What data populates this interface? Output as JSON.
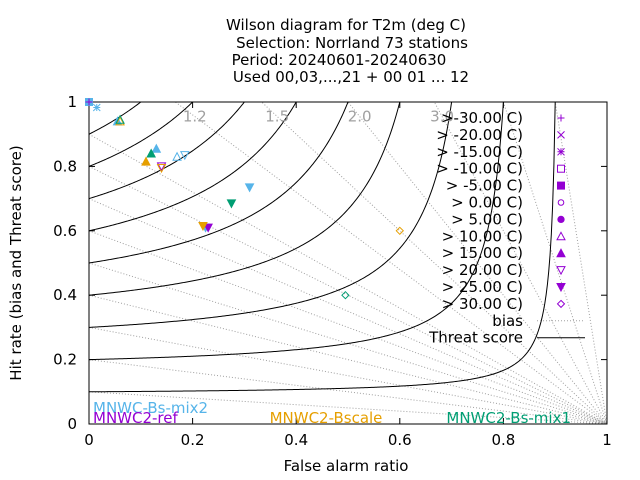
{
  "title_lines": [
    "Wilson diagram  for T2m (deg C)",
    "Selection: Norrland     73 stations",
    "Period: 20240601-20240630",
    "Used 00,03,...,21 + 00 01 ... 12"
  ],
  "chart_data": {
    "type": "scatter",
    "xlabel": "False alarm ratio",
    "ylabel": "Hit rate (bias and Threat score)",
    "xlim": [
      0,
      1
    ],
    "ylim": [
      0,
      1
    ],
    "x_ticks": [
      0,
      0.2,
      0.4,
      0.6,
      0.8,
      1
    ],
    "x_tick_labels": [
      "0",
      "0.2",
      "0.4",
      "0.6",
      "0.8",
      "1"
    ],
    "y_ticks": [
      0,
      0.2,
      0.4,
      0.6,
      0.8,
      1
    ],
    "y_tick_labels": [
      "0",
      "0.2",
      "0.4",
      "0.6",
      "0.8",
      "1"
    ],
    "bias_lines": [
      0.1,
      0.2,
      0.3,
      0.4,
      0.5,
      0.6,
      0.7,
      0.8,
      0.9,
      1.2,
      1.5,
      2.0,
      3.0,
      5.0,
      10.0
    ],
    "bias_labels": [
      {
        "value": 1.2,
        "text": "1.2"
      },
      {
        "value": 1.5,
        "text": "1.5"
      },
      {
        "value": 2.0,
        "text": "2.0"
      },
      {
        "value": 3.0,
        "text": "3.0"
      }
    ],
    "threat_score_levels": [
      0.1,
      0.2,
      0.3,
      0.4,
      0.5,
      0.6,
      0.7,
      0.8,
      0.9
    ],
    "legend": {
      "position": "top-right",
      "entries": [
        {
          "label": ">-30.00 C)",
          "marker": "plus"
        },
        {
          "label": "> -20.00 C)",
          "marker": "cross"
        },
        {
          "label": "> -15.00 C)",
          "marker": "star"
        },
        {
          "label": "> -10.00 C)",
          "marker": "square-open"
        },
        {
          "label": "> -5.00 C)",
          "marker": "square-filled"
        },
        {
          "label": "> 0.00 C)",
          "marker": "circle-open"
        },
        {
          "label": "> 5.00 C)",
          "marker": "circle-filled"
        },
        {
          "label": "> 10.00 C)",
          "marker": "triangle-open"
        },
        {
          "label": "> 15.00 C)",
          "marker": "triangle-filled"
        },
        {
          "label": "> 20.00 C)",
          "marker": "triangle-down-open"
        },
        {
          "label": "> 25.00 C)",
          "marker": "triangle-down-filled"
        },
        {
          "label": "> 30.00 C)",
          "marker": "diamond-open"
        }
      ],
      "line_entries": [
        {
          "label": "bias",
          "style": "dotted"
        },
        {
          "label": "Threat score",
          "style": "solid"
        }
      ],
      "marker_color": "#9400d3"
    },
    "series": [
      {
        "name": "MNWC-Bs-mix2",
        "color": "#56b4e9",
        "points": [
          {
            "x": 0.0,
            "y": 1.0,
            "marker": "square-filled"
          },
          {
            "x": 0.015,
            "y": 0.983,
            "marker": "star"
          },
          {
            "x": 0.055,
            "y": 0.94,
            "marker": "triangle-filled"
          },
          {
            "x": 0.13,
            "y": 0.855,
            "marker": "triangle-filled"
          },
          {
            "x": 0.17,
            "y": 0.83,
            "marker": "triangle-open"
          },
          {
            "x": 0.185,
            "y": 0.835,
            "marker": "triangle-down-open"
          },
          {
            "x": 0.31,
            "y": 0.735,
            "marker": "triangle-down-filled"
          },
          {
            "x": 0.225,
            "y": 0.61,
            "marker": "triangle-down-filled"
          }
        ]
      },
      {
        "name": "MNWC2-ref",
        "color": "#9400d3",
        "points": [
          {
            "x": 0.0,
            "y": 1.0,
            "marker": "plus"
          },
          {
            "x": 0.14,
            "y": 0.8,
            "marker": "triangle-down-open"
          },
          {
            "x": 0.23,
            "y": 0.61,
            "marker": "triangle-down-filled"
          }
        ]
      },
      {
        "name": "MNWC2-Bscale",
        "color": "#e69f00",
        "points": [
          {
            "x": 0.06,
            "y": 0.94,
            "marker": "triangle-open"
          },
          {
            "x": 0.11,
            "y": 0.815,
            "marker": "triangle-filled"
          },
          {
            "x": 0.14,
            "y": 0.795,
            "marker": "triangle-down-open"
          },
          {
            "x": 0.22,
            "y": 0.615,
            "marker": "triangle-down-filled"
          },
          {
            "x": 0.6,
            "y": 0.6,
            "marker": "diamond-open"
          }
        ]
      },
      {
        "name": "MNWC2-Bs-mix1",
        "color": "#009e73",
        "points": [
          {
            "x": 0.06,
            "y": 0.945,
            "marker": "triangle-open"
          },
          {
            "x": 0.12,
            "y": 0.84,
            "marker": "triangle-filled"
          },
          {
            "x": 0.275,
            "y": 0.685,
            "marker": "triangle-down-filled"
          },
          {
            "x": 0.495,
            "y": 0.4,
            "marker": "diamond-open"
          }
        ]
      }
    ],
    "model_labels": [
      {
        "text": "MNWC-Bs-mix2",
        "color": "#56b4e9",
        "anchor": "bottom-left"
      },
      {
        "text": "MNWC2-ref",
        "color": "#9400d3",
        "anchor": "bottom-left"
      },
      {
        "text": "MNWC2-Bscale",
        "color": "#e69f00",
        "anchor": "bottom-center"
      },
      {
        "text": "MNWC2-Bs-mix1",
        "color": "#009e73",
        "anchor": "bottom-right"
      }
    ]
  }
}
